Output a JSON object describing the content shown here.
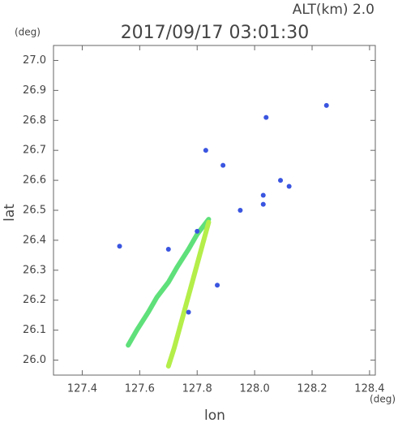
{
  "chart_data": {
    "type": "scatter",
    "title": "2017/09/17 03:01:30",
    "altitude_label": "ALT(km) 2.0",
    "xlabel": "lon",
    "ylabel": "lat",
    "x_unit": "(deg)",
    "y_unit": "(deg)",
    "xlim": [
      127.3,
      128.42
    ],
    "ylim": [
      25.95,
      27.05
    ],
    "xticks": [
      {
        "value": 127.4,
        "label": "127.4"
      },
      {
        "value": 127.6,
        "label": "127.6"
      },
      {
        "value": 127.8,
        "label": "127.8"
      },
      {
        "value": 128.0,
        "label": "128.0"
      },
      {
        "value": 128.2,
        "label": "128.2"
      },
      {
        "value": 128.4,
        "label": "128.4"
      }
    ],
    "yticks": [
      {
        "value": 26.0,
        "label": "26.0"
      },
      26.1,
      26.2,
      26.3,
      26.4,
      26.5,
      26.6,
      26.7,
      26.8,
      26.9,
      {
        "value": 27.0,
        "label": "27.0"
      }
    ],
    "grid": false,
    "series": [
      {
        "type": "line",
        "color": "#5fe07a",
        "x": [
          127.84,
          127.8,
          127.77,
          127.73,
          127.7,
          127.66,
          127.63,
          127.59,
          127.56
        ],
        "values": [
          26.47,
          26.42,
          26.37,
          26.31,
          26.26,
          26.21,
          26.16,
          26.1,
          26.05
        ]
      },
      {
        "type": "line",
        "color": "#b4ee4a",
        "x": [
          127.84,
          127.82,
          127.8,
          127.78,
          127.76,
          127.74,
          127.72,
          127.7
        ],
        "values": [
          26.46,
          26.39,
          26.32,
          26.25,
          26.18,
          26.11,
          26.04,
          25.98
        ]
      },
      {
        "type": "scatter",
        "color": "#3a55e0",
        "x": [
          128.25,
          128.04,
          127.83,
          127.89,
          128.09,
          128.12,
          128.03,
          128.03,
          127.95,
          127.53,
          127.87,
          127.77,
          127.8,
          127.7
        ],
        "values": [
          26.85,
          26.81,
          26.7,
          26.65,
          26.6,
          26.58,
          26.55,
          26.52,
          26.5,
          26.38,
          26.25,
          26.16,
          26.43,
          26.37
        ]
      }
    ]
  }
}
